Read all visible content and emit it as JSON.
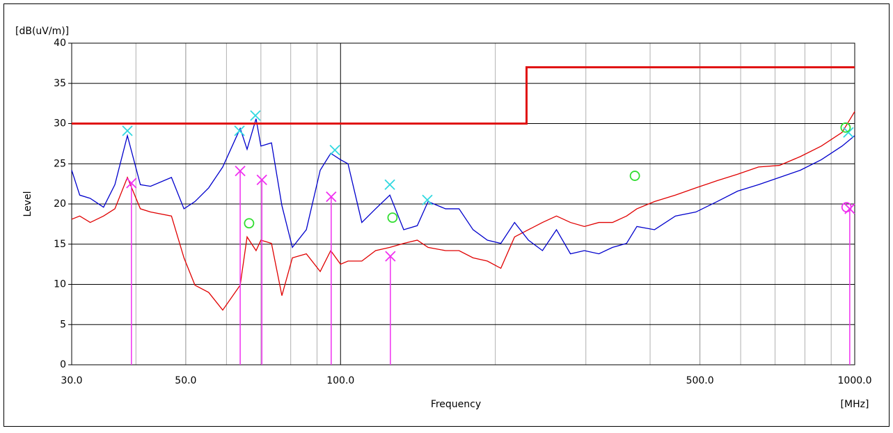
{
  "chart_data": {
    "type": "line",
    "log_x": true,
    "y_unit": "[dB(uV/m)]",
    "ylabel": "Level",
    "xlabel": "Frequency",
    "x_unit": "[MHz]",
    "xlim": [
      30,
      1000
    ],
    "ylim": [
      0,
      40
    ],
    "xticks": [
      {
        "value": 30,
        "label": "30.0"
      },
      {
        "value": 50,
        "label": "50.0"
      },
      {
        "value": 100,
        "label": "100.0"
      },
      {
        "value": 500,
        "label": "500.0"
      },
      {
        "value": 1000,
        "label": "1000.0"
      }
    ],
    "xminorticks": [
      40,
      60,
      70,
      80,
      90,
      200,
      300,
      400,
      600,
      700,
      800,
      900
    ],
    "yticks": [
      0,
      5,
      10,
      15,
      20,
      25,
      30,
      35,
      40
    ],
    "series": [
      {
        "color": "#e01010",
        "width": 3,
        "x": [
          30,
          230,
          230,
          1000
        ],
        "values": [
          30,
          30,
          37,
          37
        ]
      },
      {
        "color": "#0000cc",
        "width": 1.3,
        "x": [
          30,
          31.1,
          32.6,
          34.6,
          36.4,
          38.5,
          40.8,
          42.7,
          46.9,
          49.6,
          52.1,
          55.4,
          59.0,
          63.8,
          65.8,
          68.5,
          70.0,
          73.4,
          76.9,
          80.6,
          85.8,
          91.3,
          95.7,
          100,
          103.4,
          110,
          117,
          124.7,
          132.7,
          141,
          148,
          160,
          170,
          181,
          193,
          205,
          218,
          232,
          247,
          263,
          280,
          298,
          318,
          338,
          360,
          377,
          408,
          448,
          491,
          540,
          592,
          650,
          714,
          784,
          861,
          945,
          1000
        ],
        "values": [
          24.2,
          21.1,
          20.7,
          19.6,
          22.4,
          28.5,
          22.4,
          22.2,
          23.3,
          19.4,
          20.3,
          22.0,
          24.6,
          29.4,
          26.8,
          30.6,
          27.2,
          27.6,
          19.8,
          14.6,
          16.8,
          24.2,
          26.3,
          25.5,
          25.0,
          17.7,
          19.4,
          21.1,
          16.8,
          17.3,
          20.3,
          19.4,
          19.4,
          16.8,
          15.5,
          15.1,
          17.7,
          15.5,
          14.2,
          16.8,
          13.8,
          14.2,
          13.8,
          14.6,
          15.1,
          17.2,
          16.8,
          18.5,
          19.0,
          20.3,
          21.6,
          22.4,
          23.3,
          24.2,
          25.5,
          27.2,
          28.5
        ]
      },
      {
        "color": "#e00000",
        "width": 1.3,
        "x": [
          30,
          31.1,
          32.6,
          34.6,
          36.4,
          38.5,
          40.8,
          42.7,
          46.9,
          49.6,
          52.1,
          55.4,
          59.0,
          63.8,
          65.8,
          68.5,
          70.0,
          73.4,
          76.9,
          80.6,
          85.8,
          91.3,
          95.7,
          100,
          103.4,
          110,
          117,
          124.7,
          132.7,
          141,
          148,
          160,
          170,
          181,
          193,
          205,
          218,
          232,
          247,
          263,
          280,
          298,
          318,
          338,
          360,
          377,
          408,
          448,
          491,
          540,
          592,
          650,
          714,
          784,
          861,
          945,
          1000
        ],
        "values": [
          18.1,
          18.5,
          17.7,
          18.5,
          19.4,
          23.3,
          19.4,
          19.0,
          18.5,
          13.3,
          9.9,
          9.0,
          6.8,
          9.9,
          15.9,
          14.2,
          15.5,
          15.1,
          8.6,
          13.3,
          13.8,
          11.6,
          14.2,
          12.5,
          12.9,
          12.9,
          14.2,
          14.6,
          15.1,
          15.5,
          14.6,
          14.2,
          14.2,
          13.3,
          12.9,
          12.0,
          15.9,
          16.8,
          17.7,
          18.5,
          17.7,
          17.2,
          17.7,
          17.7,
          18.5,
          19.4,
          20.3,
          21.1,
          22.0,
          22.9,
          23.7,
          24.6,
          24.8,
          25.9,
          27.2,
          28.9,
          31.5
        ]
      }
    ],
    "markers": [
      {
        "symbol": "cross",
        "color": "#30d8e0",
        "stem": false,
        "x": [
          38.5,
          63.6,
          68.3,
          97.5,
          124.7,
          147.5,
          972
        ],
        "values": [
          29.1,
          29.1,
          31.0,
          26.7,
          22.4,
          20.5,
          28.9
        ]
      },
      {
        "symbol": "cross",
        "color": "#f030f0",
        "stem": true,
        "x": [
          39.2,
          63.8,
          70.3,
          95.9,
          125,
          978
        ],
        "values": [
          22.6,
          24.1,
          23.0,
          20.9,
          13.5,
          19.4
        ]
      },
      {
        "symbol": "circle",
        "color": "#30dd30",
        "stem": false,
        "x": [
          66.4,
          126.2,
          373.6,
          960
        ],
        "values": [
          17.6,
          18.3,
          23.5,
          29.5
        ]
      },
      {
        "symbol": "circle",
        "color": "#f030f0",
        "stem": false,
        "x": [
          964
        ],
        "values": [
          19.6
        ]
      }
    ]
  }
}
